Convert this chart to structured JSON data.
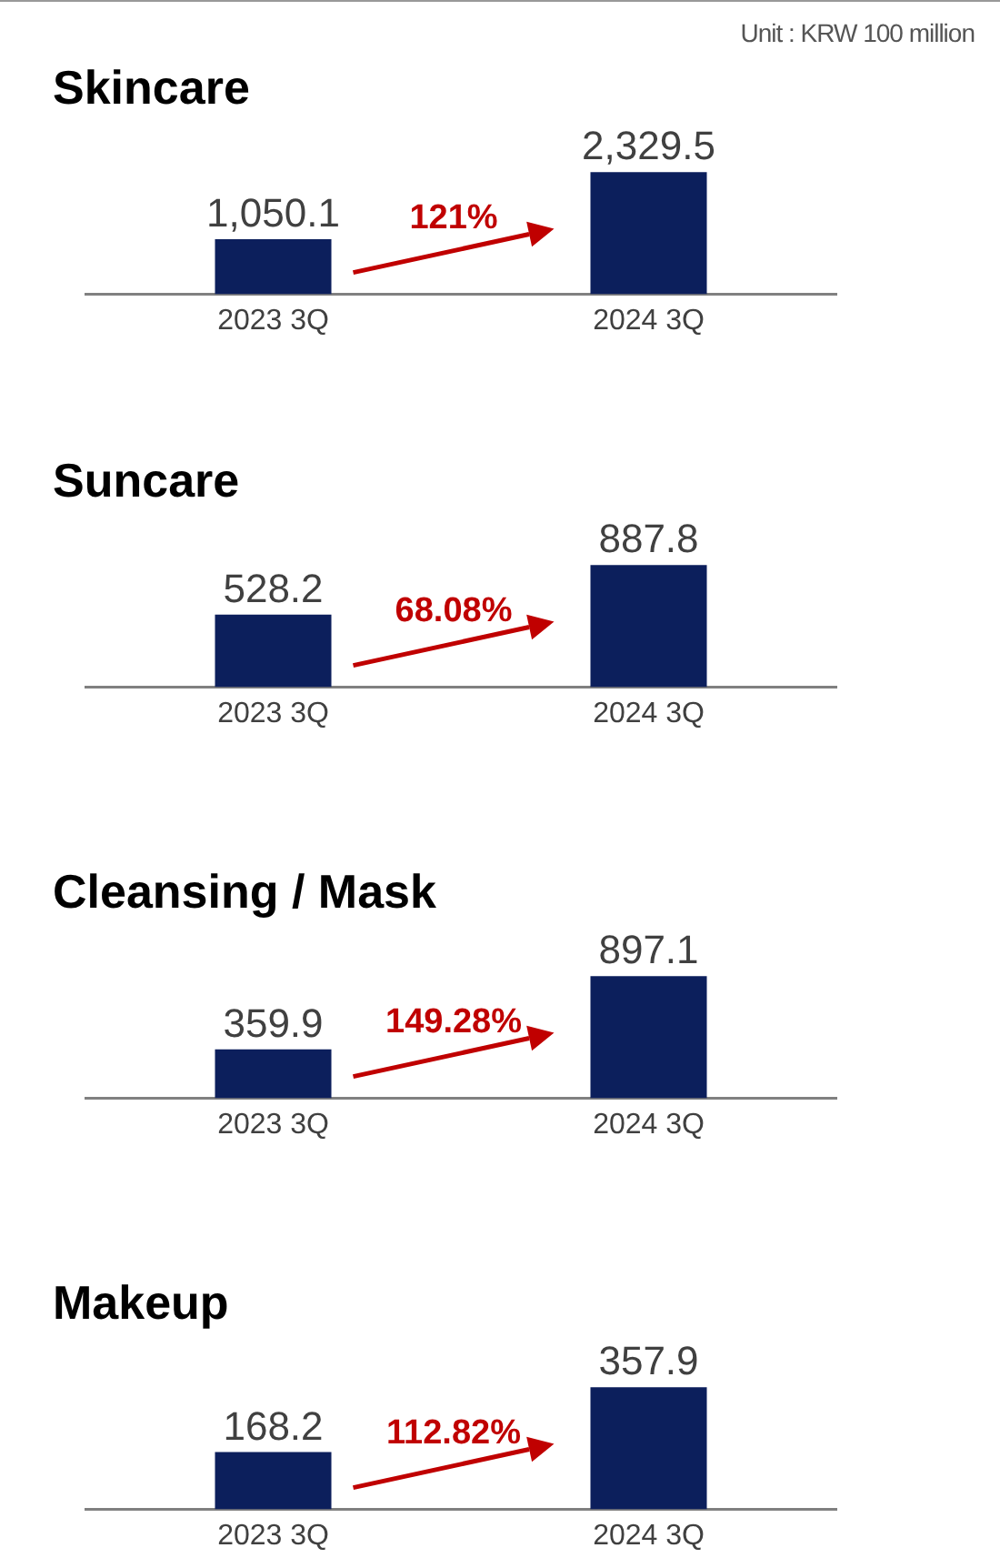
{
  "chart_data": [
    {
      "type": "bar",
      "title": "Skincare",
      "categories": [
        "2023 3Q",
        "2024 3Q"
      ],
      "values": [
        1050.1,
        2329.5
      ],
      "value_labels": [
        "1,050.1",
        "2,329.5"
      ],
      "color": "#0c1f5c",
      "tick_labels": "x",
      "grid": false,
      "legend": false,
      "annotations": [
        "Unit : KRW 100 million",
        "121%"
      ]
    },
    {
      "type": "bar",
      "title": "Suncare",
      "categories": [
        "2023 3Q",
        "2024 3Q"
      ],
      "values": [
        528.2,
        887.8
      ],
      "value_labels": [
        "528.2",
        "887.8"
      ],
      "color": "#0c1f5c",
      "tick_labels": "x",
      "grid": false,
      "legend": false,
      "annotations": [
        "68.08%"
      ]
    },
    {
      "type": "bar",
      "title": "Cleansing / Mask",
      "categories": [
        "2023 3Q",
        "2024 3Q"
      ],
      "values": [
        359.9,
        897.1
      ],
      "value_labels": [
        "359.9",
        "897.1"
      ],
      "color": "#0c1f5c",
      "tick_labels": "x",
      "grid": false,
      "legend": false,
      "annotations": [
        "149.28%"
      ]
    },
    {
      "type": "bar",
      "title": "Makeup",
      "categories": [
        "2023 3Q",
        "2024 3Q"
      ],
      "values": [
        168.2,
        357.9
      ],
      "value_labels": [
        "168.2",
        "357.9"
      ],
      "color": "#0c1f5c",
      "tick_labels": "x",
      "grid": false,
      "legend": false,
      "annotations": [
        "112.82%"
      ]
    }
  ]
}
